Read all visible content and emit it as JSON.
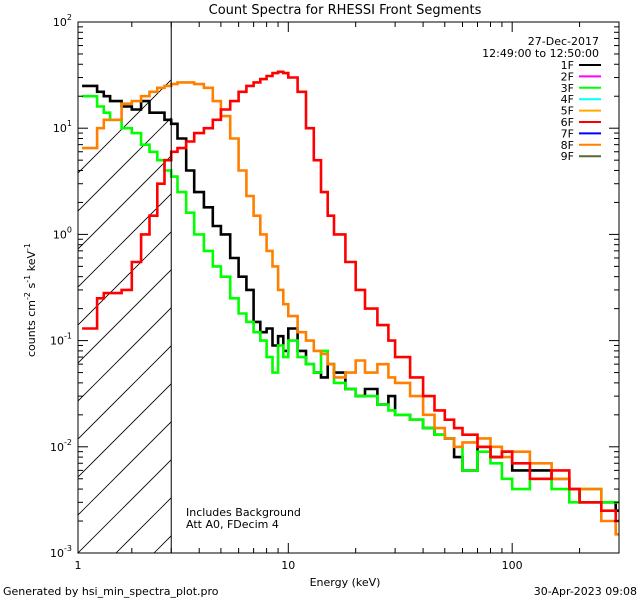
{
  "chart_data": {
    "type": "line",
    "title": "Count Spectra for RHESSI Front Segments",
    "xlabel": "Energy (keV)",
    "ylabel": "counts cm^-2 s^-1 keV^-1",
    "xscale": "log",
    "yscale": "log",
    "xlim": [
      1.15,
      300
    ],
    "ylim": [
      0.001,
      100
    ],
    "x_ticks": [
      {
        "value": 1,
        "label": "1"
      },
      {
        "value": 10,
        "label": "10"
      },
      {
        "value": 100,
        "label": "100"
      }
    ],
    "y_ticks": [
      {
        "value": 0.001,
        "base": "10",
        "exp": "-3"
      },
      {
        "value": 0.01,
        "base": "10",
        "exp": "-2"
      },
      {
        "value": 0.1,
        "base": "10",
        "exp": "-1"
      },
      {
        "value": 1,
        "base": "10",
        "exp": "0"
      },
      {
        "value": 10,
        "base": "10",
        "exp": "1"
      },
      {
        "value": 100,
        "base": "10",
        "exp": "2"
      }
    ],
    "ylabel_parts": {
      "a": "counts cm",
      "b": "-2",
      "c": " s",
      "d": "-1",
      "e": " keV",
      "f": "-1"
    },
    "hatched_region": {
      "x_max": 3
    },
    "date": "27-Dec-2017",
    "time_range": "12:49:00 to 12:50:00",
    "legend": [
      {
        "name": "1F",
        "color": "#000000"
      },
      {
        "name": "2F",
        "color": "#ff00ff"
      },
      {
        "name": "3F",
        "color": "#00ff00"
      },
      {
        "name": "4F",
        "color": "#00ffff"
      },
      {
        "name": "5F",
        "color": "#ffaa00"
      },
      {
        "name": "6F",
        "color": "#ff0000"
      },
      {
        "name": "7F",
        "color": "#0000ff"
      },
      {
        "name": "8F",
        "color": "#ff8000"
      },
      {
        "name": "9F",
        "color": "#556b2f"
      }
    ],
    "annotations": [
      "Includes Background",
      "Att A0, FDecim 4"
    ],
    "series": [
      {
        "name": "1F",
        "color": "#000000",
        "points": [
          [
            1.2,
            25
          ],
          [
            1.3,
            25
          ],
          [
            1.4,
            22
          ],
          [
            1.5,
            20
          ],
          [
            1.6,
            18
          ],
          [
            1.8,
            16
          ],
          [
            2.0,
            15
          ],
          [
            2.2,
            18
          ],
          [
            2.4,
            14
          ],
          [
            2.6,
            14
          ],
          [
            2.8,
            12
          ],
          [
            3.0,
            11
          ],
          [
            3.2,
            8
          ],
          [
            3.5,
            4
          ],
          [
            3.8,
            2.5
          ],
          [
            4.2,
            1.8
          ],
          [
            4.6,
            1.2
          ],
          [
            5.0,
            1.0
          ],
          [
            5.5,
            0.6
          ],
          [
            6.0,
            0.4
          ],
          [
            6.5,
            0.3
          ],
          [
            7.0,
            0.15
          ],
          [
            7.5,
            0.12
          ],
          [
            8.0,
            0.13
          ],
          [
            8.5,
            0.09
          ],
          [
            9.0,
            0.11
          ],
          [
            9.5,
            0.08
          ],
          [
            10,
            0.13
          ],
          [
            11,
            0.08
          ],
          [
            12,
            0.06
          ],
          [
            13,
            0.05
          ],
          [
            14,
            0.045
          ],
          [
            15,
            0.06
          ],
          [
            16,
            0.05
          ],
          [
            18,
            0.035
          ],
          [
            20,
            0.03
          ],
          [
            22,
            0.035
          ],
          [
            25,
            0.025
          ],
          [
            28,
            0.03
          ],
          [
            30,
            0.02
          ],
          [
            35,
            0.018
          ],
          [
            40,
            0.015
          ],
          [
            45,
            0.013
          ],
          [
            50,
            0.012
          ],
          [
            55,
            0.008
          ],
          [
            60,
            0.006
          ],
          [
            70,
            0.01
          ],
          [
            80,
            0.008
          ],
          [
            90,
            0.009
          ],
          [
            100,
            0.006
          ],
          [
            120,
            0.006
          ],
          [
            150,
            0.005
          ],
          [
            180,
            0.004
          ],
          [
            200,
            0.003
          ],
          [
            250,
            0.003
          ],
          [
            290,
            0.0025
          ]
        ]
      },
      {
        "name": "3F",
        "color": "#00ff00",
        "points": [
          [
            1.2,
            20
          ],
          [
            1.3,
            20
          ],
          [
            1.4,
            16
          ],
          [
            1.5,
            14
          ],
          [
            1.6,
            12
          ],
          [
            1.8,
            10
          ],
          [
            2.0,
            9
          ],
          [
            2.2,
            7
          ],
          [
            2.4,
            6
          ],
          [
            2.6,
            5
          ],
          [
            2.8,
            4
          ],
          [
            3.0,
            3.5
          ],
          [
            3.2,
            2.5
          ],
          [
            3.5,
            1.6
          ],
          [
            3.8,
            1.0
          ],
          [
            4.2,
            0.7
          ],
          [
            4.6,
            0.5
          ],
          [
            5.0,
            0.4
          ],
          [
            5.5,
            0.25
          ],
          [
            6.0,
            0.18
          ],
          [
            6.5,
            0.15
          ],
          [
            7.0,
            0.12
          ],
          [
            7.5,
            0.1
          ],
          [
            8.0,
            0.07
          ],
          [
            8.5,
            0.05
          ],
          [
            9.0,
            0.09
          ],
          [
            9.5,
            0.07
          ],
          [
            10,
            0.1
          ],
          [
            11,
            0.07
          ],
          [
            12,
            0.06
          ],
          [
            13,
            0.05
          ],
          [
            14,
            0.08
          ],
          [
            15,
            0.06
          ],
          [
            16,
            0.04
          ],
          [
            18,
            0.035
          ],
          [
            20,
            0.03
          ],
          [
            22,
            0.03
          ],
          [
            25,
            0.025
          ],
          [
            28,
            0.022
          ],
          [
            30,
            0.02
          ],
          [
            35,
            0.018
          ],
          [
            40,
            0.015
          ],
          [
            45,
            0.013
          ],
          [
            50,
            0.012
          ],
          [
            55,
            0.01
          ],
          [
            60,
            0.006
          ],
          [
            70,
            0.009
          ],
          [
            80,
            0.007
          ],
          [
            90,
            0.005
          ],
          [
            100,
            0.004
          ],
          [
            120,
            0.005
          ],
          [
            150,
            0.004
          ],
          [
            180,
            0.003
          ],
          [
            200,
            0.004
          ],
          [
            250,
            0.003
          ],
          [
            290,
            0.003
          ]
        ]
      },
      {
        "name": "8F",
        "color": "#ff8000",
        "points": [
          [
            1.2,
            6.5
          ],
          [
            1.3,
            6.5
          ],
          [
            1.4,
            10
          ],
          [
            1.5,
            12
          ],
          [
            1.6,
            12
          ],
          [
            1.8,
            17
          ],
          [
            2.0,
            18
          ],
          [
            2.2,
            20
          ],
          [
            2.4,
            22
          ],
          [
            2.6,
            24
          ],
          [
            2.8,
            25
          ],
          [
            3.0,
            26
          ],
          [
            3.2,
            27
          ],
          [
            3.5,
            27
          ],
          [
            3.8,
            26
          ],
          [
            4.2,
            24
          ],
          [
            4.6,
            18
          ],
          [
            5.0,
            13
          ],
          [
            5.5,
            8
          ],
          [
            6.0,
            4
          ],
          [
            6.5,
            2.3
          ],
          [
            7.0,
            1.5
          ],
          [
            7.5,
            1.0
          ],
          [
            8.0,
            0.7
          ],
          [
            8.5,
            0.5
          ],
          [
            9.0,
            0.3
          ],
          [
            9.5,
            0.22
          ],
          [
            10,
            0.17
          ],
          [
            11,
            0.12
          ],
          [
            12,
            0.1
          ],
          [
            13,
            0.08
          ],
          [
            14,
            0.075
          ],
          [
            15,
            0.06
          ],
          [
            16,
            0.045
          ],
          [
            18,
            0.05
          ],
          [
            20,
            0.065
          ],
          [
            22,
            0.05
          ],
          [
            25,
            0.06
          ],
          [
            28,
            0.045
          ],
          [
            30,
            0.04
          ],
          [
            35,
            0.03
          ],
          [
            40,
            0.02
          ],
          [
            45,
            0.015
          ],
          [
            50,
            0.012
          ],
          [
            55,
            0.01
          ],
          [
            60,
            0.011
          ],
          [
            70,
            0.012
          ],
          [
            80,
            0.01
          ],
          [
            90,
            0.008
          ],
          [
            100,
            0.009
          ],
          [
            120,
            0.007
          ],
          [
            150,
            0.005
          ],
          [
            180,
            0.004
          ],
          [
            200,
            0.004
          ],
          [
            250,
            0.002
          ],
          [
            290,
            0.0015
          ]
        ]
      },
      {
        "name": "6F",
        "color": "#ff0000",
        "points": [
          [
            1.2,
            0.13
          ],
          [
            1.3,
            0.13
          ],
          [
            1.4,
            0.25
          ],
          [
            1.5,
            0.28
          ],
          [
            1.6,
            0.28
          ],
          [
            1.8,
            0.3
          ],
          [
            2.0,
            0.55
          ],
          [
            2.2,
            1.0
          ],
          [
            2.4,
            1.5
          ],
          [
            2.6,
            3
          ],
          [
            2.8,
            5
          ],
          [
            3.0,
            6
          ],
          [
            3.2,
            6.5
          ],
          [
            3.5,
            7.5
          ],
          [
            3.8,
            9
          ],
          [
            4.2,
            10
          ],
          [
            4.6,
            12
          ],
          [
            5.0,
            15
          ],
          [
            5.5,
            18
          ],
          [
            6.0,
            22
          ],
          [
            6.5,
            25
          ],
          [
            7.0,
            27
          ],
          [
            7.5,
            29
          ],
          [
            8.0,
            31
          ],
          [
            8.5,
            33
          ],
          [
            9.0,
            34
          ],
          [
            9.5,
            33
          ],
          [
            10,
            30
          ],
          [
            11,
            22
          ],
          [
            12,
            10
          ],
          [
            13,
            5
          ],
          [
            14,
            2.5
          ],
          [
            15,
            1.5
          ],
          [
            16,
            1.0
          ],
          [
            18,
            0.55
          ],
          [
            20,
            0.3
          ],
          [
            22,
            0.2
          ],
          [
            25,
            0.14
          ],
          [
            28,
            0.1
          ],
          [
            30,
            0.07
          ],
          [
            35,
            0.045
          ],
          [
            40,
            0.03
          ],
          [
            45,
            0.022
          ],
          [
            50,
            0.018
          ],
          [
            55,
            0.015
          ],
          [
            60,
            0.013
          ],
          [
            70,
            0.01
          ],
          [
            80,
            0.008
          ],
          [
            90,
            0.009
          ],
          [
            100,
            0.007
          ],
          [
            120,
            0.005
          ],
          [
            150,
            0.006
          ],
          [
            180,
            0.004
          ],
          [
            200,
            0.003
          ],
          [
            250,
            0.0025
          ],
          [
            290,
            0.002
          ]
        ]
      }
    ]
  },
  "footer": {
    "generated_by": "Generated by hsi_min_spectra_plot.pro",
    "timestamp": "30-Apr-2023 09:08"
  }
}
